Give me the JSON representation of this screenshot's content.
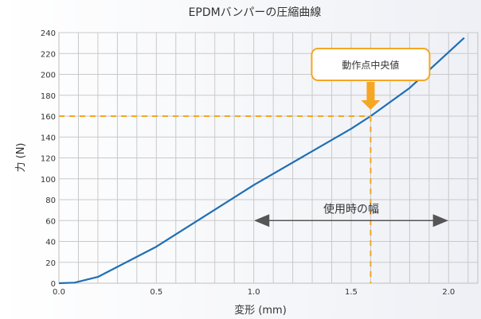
{
  "chart_data": {
    "type": "line",
    "title": "EPDMバンパーの圧縮曲線",
    "xlabel": "変形 (mm)",
    "ylabel": "力 (N)",
    "xlim": [
      0,
      2.15
    ],
    "ylim": [
      0,
      240
    ],
    "x_ticks": [
      0.0,
      0.5,
      1.0,
      1.5,
      2.0
    ],
    "x_tick_labels": [
      "0.0",
      "0.5",
      "1.0",
      "1.5",
      "2.0"
    ],
    "y_ticks": [
      0,
      20,
      40,
      60,
      80,
      100,
      120,
      140,
      160,
      180,
      200,
      220,
      240
    ],
    "y_tick_labels": [
      "0",
      "20",
      "40",
      "60",
      "80",
      "100",
      "120",
      "140",
      "160",
      "180",
      "200",
      "220",
      "240"
    ],
    "x_minor_step": 0.1,
    "grid": true,
    "legend": "none",
    "series": [
      {
        "x": [
          0.0,
          0.08,
          0.2,
          0.5,
          1.0,
          1.5,
          1.6,
          1.8,
          2.08
        ],
        "y": [
          0,
          0.5,
          6,
          35,
          94,
          148,
          160,
          187,
          235
        ],
        "color": "#1f6fb4"
      }
    ],
    "operating_point": {
      "x": 1.6,
      "y": 160,
      "label": "動作点中央値"
    },
    "usage_range": {
      "x_start": 1.0,
      "x_end": 2.0,
      "y": 60,
      "label": "使用時の幅"
    },
    "colors": {
      "line": "#1f6fb4",
      "highlight": "#f5a623",
      "arrow": "#555555",
      "grid": "#c9c9c9"
    }
  }
}
